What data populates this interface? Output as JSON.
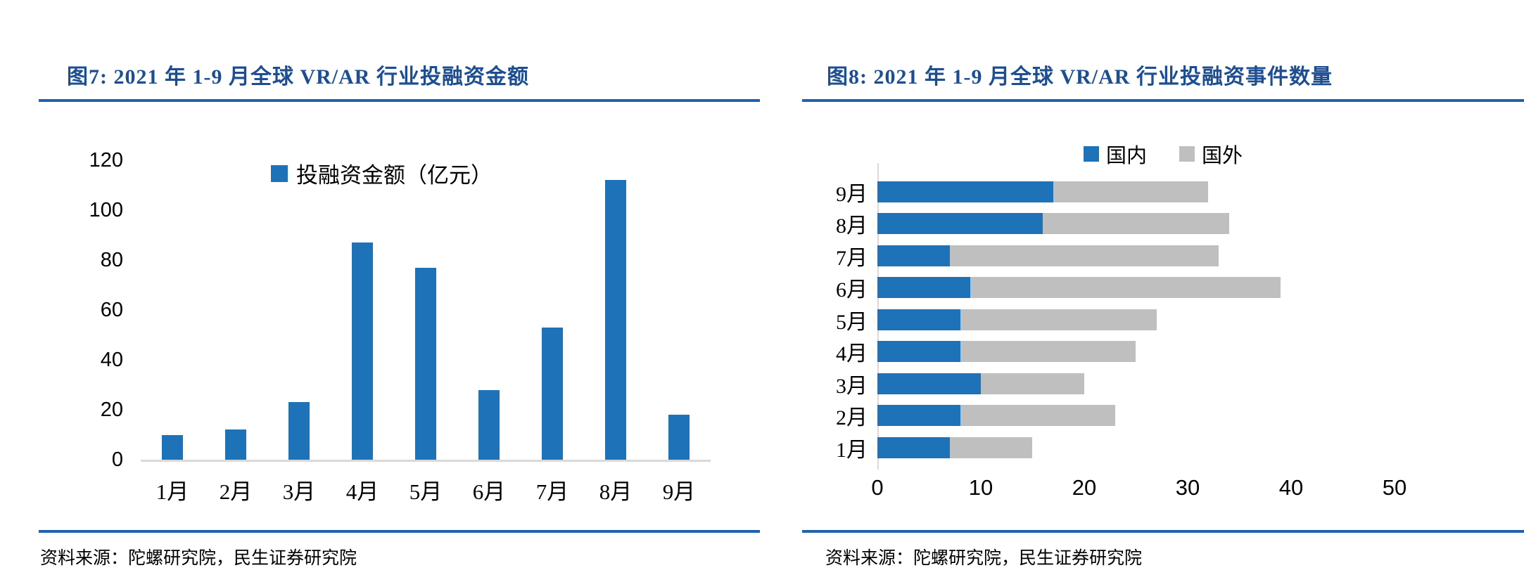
{
  "colors": {
    "series_blue": "#1e73b8",
    "series_gray": "#bfbfbf",
    "title_blue": "#1d4e91",
    "rule_blue": "#1f63ad",
    "axis_gray": "#d9d9d9"
  },
  "chart_data": [
    {
      "id": "fig7",
      "type": "bar",
      "title": "图7: 2021 年 1-9 月全球 VR/AR 行业投融资金额",
      "categories": [
        "1月",
        "2月",
        "3月",
        "4月",
        "5月",
        "6月",
        "7月",
        "8月",
        "9月"
      ],
      "series": [
        {
          "name": "投融资金额（亿元）",
          "color": "#1e73b8",
          "values": [
            10,
            12,
            23,
            87,
            77,
            28,
            53,
            112,
            18
          ]
        }
      ],
      "ylabel": "",
      "xlabel": "",
      "ylim": [
        0,
        120
      ],
      "yticks": [
        0,
        20,
        40,
        60,
        80,
        100,
        120
      ],
      "grid": false,
      "legend_position": "top-center-inside",
      "source": "资料来源：陀螺研究院，民生证券研究院"
    },
    {
      "id": "fig8",
      "type": "bar",
      "subtype": "horizontal-stacked",
      "title": "图8: 2021 年 1-9 月全球 VR/AR 行业投融资事件数量",
      "categories": [
        "9月",
        "8月",
        "7月",
        "6月",
        "5月",
        "4月",
        "3月",
        "2月",
        "1月"
      ],
      "series": [
        {
          "name": "国内",
          "color": "#1e73b8",
          "values": [
            17,
            16,
            7,
            9,
            8,
            8,
            10,
            8,
            7
          ]
        },
        {
          "name": "国外",
          "color": "#bfbfbf",
          "values": [
            15,
            18,
            26,
            30,
            19,
            17,
            10,
            15,
            8
          ]
        }
      ],
      "totals": [
        32,
        34,
        33,
        39,
        27,
        25,
        20,
        23,
        15
      ],
      "ylabel": "",
      "xlabel": "",
      "xlim": [
        0,
        58
      ],
      "xticks": [
        0,
        10,
        20,
        30,
        40,
        50
      ],
      "grid": false,
      "legend_position": "top-center",
      "source": "资料来源：陀螺研究院，民生证券研究院"
    }
  ]
}
